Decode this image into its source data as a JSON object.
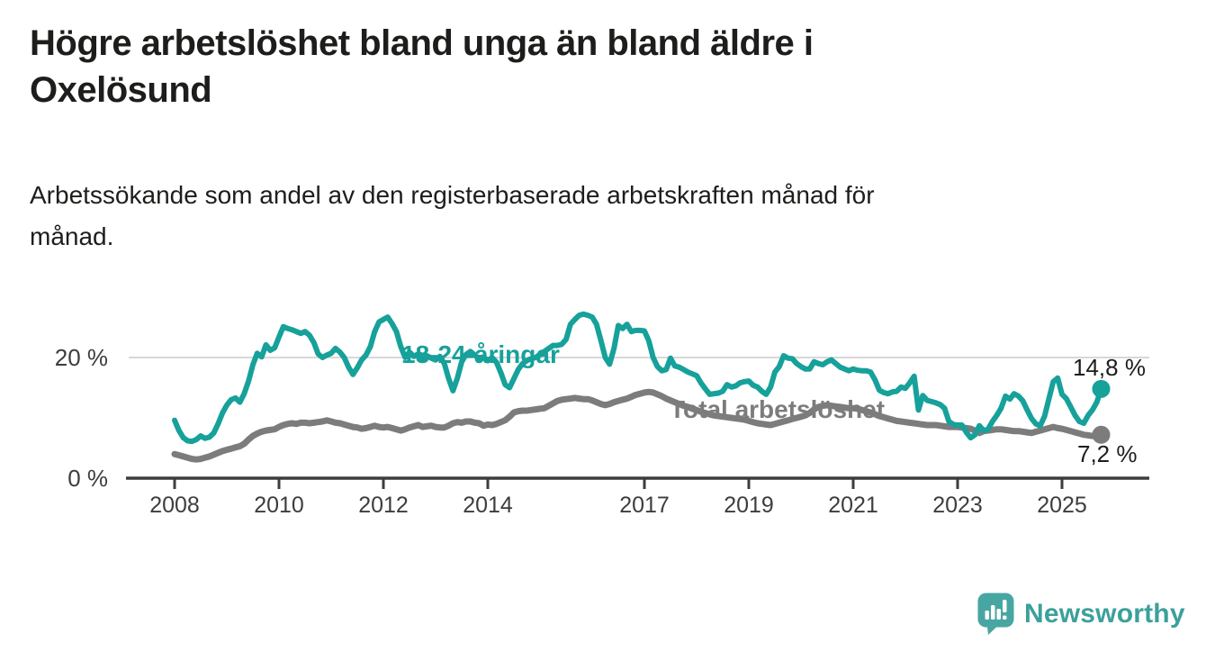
{
  "header": {
    "title_line1": "Högre arbetslöshet bland unga än bland äldre i",
    "title_line2": "Oxelösund",
    "subtitle_line1": "Arbetssökande som andel av den registerbaserade arbetskraften månad för",
    "subtitle_line2": "månad."
  },
  "chart_data": {
    "type": "line",
    "title": "Högre arbetslöshet bland unga än bland äldre i Oxelösund",
    "subtitle": "Arbetssökande som andel av den registerbaserade arbetskraften månad för månad.",
    "x_frequency": "monthly",
    "x_start": "2008-01",
    "x_end": "2025-10",
    "ylim": [
      0,
      29
    ],
    "grid": "horizontal gridline at 20% only",
    "legend_position": "inline labels on lines",
    "x_tick_years": [
      2008,
      2010,
      2012,
      2014,
      2017,
      2019,
      2021,
      2023,
      2025
    ],
    "x_tick_labels": [
      "2008",
      "2010",
      "2012",
      "2014",
      "2017",
      "2019",
      "2021",
      "2023",
      "2025"
    ],
    "y_ticks": [
      {
        "value": 0,
        "label": "0 %"
      },
      {
        "value": 20,
        "label": "20 %"
      }
    ],
    "series": [
      {
        "name": "18-24-åringar",
        "label_text": "18-24-åringar",
        "color": "#16a19a",
        "end_value": 14.8,
        "end_label": "14,8 %",
        "values": [
          9.6,
          7.9,
          6.7,
          6.2,
          6.1,
          6.4,
          7.0,
          6.6,
          6.8,
          7.5,
          9.0,
          10.8,
          12.1,
          13.0,
          13.3,
          12.6,
          14.0,
          16.1,
          18.8,
          20.7,
          20.1,
          22.1,
          21.2,
          21.6,
          23.4,
          25.1,
          24.8,
          24.6,
          24.3,
          24.0,
          24.3,
          23.7,
          22.5,
          20.6,
          20.0,
          20.4,
          20.7,
          21.5,
          20.9,
          20.0,
          18.4,
          17.2,
          18.3,
          19.6,
          20.4,
          21.8,
          24.3,
          25.9,
          26.3,
          26.7,
          25.6,
          24.3,
          21.8,
          20.0,
          20.9,
          20.2,
          20.6,
          19.8,
          20.3,
          19.9,
          19.6,
          20.2,
          19.0,
          16.5,
          14.5,
          16.6,
          19.3,
          20.5,
          21.0,
          20.4,
          19.8,
          20.1,
          19.5,
          20.0,
          19.2,
          17.5,
          15.5,
          15.0,
          16.5,
          18.0,
          19.0,
          19.5,
          19.8,
          20.0,
          20.5,
          21.0,
          21.5,
          22.0,
          22.0,
          22.2,
          23.0,
          25.5,
          26.3,
          27.0,
          27.2,
          27.0,
          26.7,
          25.5,
          22.8,
          20.0,
          18.9,
          21.5,
          25.3,
          24.8,
          25.5,
          24.3,
          24.5,
          24.5,
          24.4,
          22.8,
          20.0,
          18.5,
          17.8,
          18.0,
          19.9,
          18.6,
          18.4,
          18.0,
          17.6,
          17.3,
          17.0,
          15.8,
          14.8,
          13.9,
          14.0,
          14.1,
          14.4,
          15.5,
          15.1,
          15.3,
          15.8,
          16.0,
          16.1,
          15.4,
          15.1,
          14.4,
          13.9,
          15.1,
          17.6,
          18.5,
          20.3,
          19.9,
          19.8,
          19.0,
          18.5,
          18.1,
          18.1,
          19.3,
          19.0,
          18.8,
          19.3,
          19.6,
          19.0,
          18.4,
          18.1,
          17.8,
          18.1,
          17.9,
          17.8,
          17.8,
          17.6,
          16.3,
          14.6,
          14.2,
          14.0,
          14.3,
          14.4,
          15.1,
          14.9,
          15.8,
          16.9,
          11.3,
          13.7,
          12.9,
          12.7,
          12.5,
          12.2,
          11.6,
          9.4,
          8.9,
          8.8,
          8.8,
          7.6,
          6.7,
          7.2,
          8.7,
          7.9,
          8.1,
          9.4,
          10.4,
          11.6,
          13.6,
          13.1,
          14.0,
          13.6,
          12.8,
          11.3,
          9.9,
          9.0,
          8.7,
          10.3,
          13.2,
          16.0,
          16.6,
          13.9,
          13.2,
          11.8,
          10.4,
          9.4,
          9.1,
          10.4,
          11.3,
          12.6,
          14.8
        ]
      },
      {
        "name": "Total arbetslöshet",
        "label_text": "Total arbetslöshet",
        "color": "#7c7c7c",
        "end_value": 7.2,
        "end_label": "7,2 %",
        "values": [
          4.0,
          3.8,
          3.6,
          3.4,
          3.2,
          3.1,
          3.2,
          3.4,
          3.6,
          3.9,
          4.2,
          4.5,
          4.7,
          4.9,
          5.1,
          5.3,
          5.7,
          6.4,
          7.0,
          7.4,
          7.7,
          7.9,
          8.0,
          8.1,
          8.5,
          8.8,
          9.0,
          9.1,
          9.0,
          9.2,
          9.2,
          9.1,
          9.2,
          9.3,
          9.4,
          9.6,
          9.4,
          9.2,
          9.1,
          8.9,
          8.7,
          8.5,
          8.4,
          8.2,
          8.3,
          8.5,
          8.7,
          8.5,
          8.4,
          8.5,
          8.3,
          8.1,
          7.9,
          8.1,
          8.4,
          8.6,
          8.8,
          8.5,
          8.6,
          8.7,
          8.5,
          8.4,
          8.4,
          8.7,
          9.1,
          9.3,
          9.2,
          9.4,
          9.4,
          9.2,
          9.1,
          8.7,
          8.9,
          8.8,
          9.0,
          9.3,
          9.6,
          10.2,
          10.9,
          11.1,
          11.2,
          11.2,
          11.3,
          11.4,
          11.5,
          11.6,
          12.0,
          12.4,
          12.8,
          13.0,
          13.1,
          13.2,
          13.3,
          13.2,
          13.1,
          13.1,
          12.9,
          12.6,
          12.3,
          12.1,
          12.3,
          12.6,
          12.8,
          13.0,
          13.2,
          13.5,
          13.8,
          14.0,
          14.2,
          14.3,
          14.2,
          13.9,
          13.6,
          13.2,
          12.9,
          12.6,
          12.3,
          12.0,
          11.8,
          11.5,
          11.3,
          11.0,
          10.8,
          10.6,
          10.4,
          10.3,
          10.2,
          10.1,
          10.0,
          9.9,
          9.8,
          9.7,
          9.5,
          9.3,
          9.1,
          9.0,
          8.9,
          8.8,
          9.0,
          9.2,
          9.4,
          9.6,
          9.8,
          10.0,
          10.2,
          10.4,
          10.8,
          11.4,
          11.8,
          12.0,
          12.1,
          12.0,
          11.9,
          11.8,
          11.7,
          11.6,
          11.6,
          11.5,
          11.3,
          11.1,
          10.9,
          10.6,
          10.3,
          10.1,
          9.9,
          9.7,
          9.5,
          9.4,
          9.3,
          9.2,
          9.1,
          9.0,
          8.9,
          8.8,
          8.8,
          8.8,
          8.7,
          8.6,
          8.5,
          8.5,
          8.5,
          8.4,
          8.3,
          8.2,
          7.9,
          7.5,
          7.8,
          7.9,
          8.0,
          8.1,
          8.1,
          8.0,
          7.9,
          7.8,
          7.8,
          7.7,
          7.6,
          7.5,
          7.7,
          7.9,
          8.1,
          8.3,
          8.5,
          8.3,
          8.2,
          8.0,
          7.8,
          7.6,
          7.4,
          7.2,
          7.1,
          7.0,
          7.1,
          7.2
        ]
      }
    ]
  },
  "footer": {
    "brand": "Newsworthy"
  },
  "colors": {
    "teal_series": "#16a19a",
    "gray_series": "#7c7c7c",
    "text_dark": "#1d1d1b",
    "axis": "#3d3d3d",
    "gridline": "#d8d8d8",
    "logo_teal": "#48a6a2",
    "logo_text_teal": "#3ca09b",
    "background": "#ffffff"
  }
}
